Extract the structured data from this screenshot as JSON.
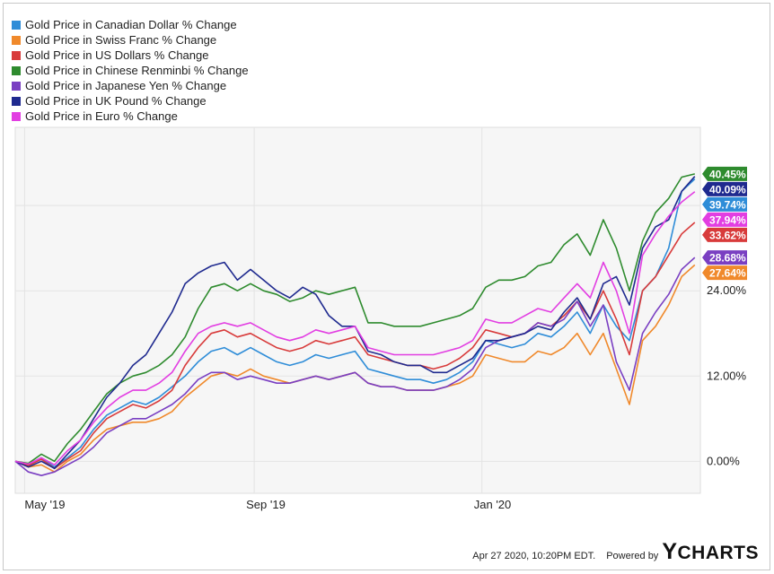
{
  "chart_data": {
    "type": "line",
    "x_ticks": [
      "May '19",
      "Sep '19",
      "Jan '20"
    ],
    "y_ticks": [
      "0.00%",
      "12.00%",
      "24.00%"
    ],
    "ylim": [
      -4.5,
      47
    ],
    "grid": true,
    "legend_position": "top-left",
    "x": [
      "2019-04-26",
      "2019-05-03",
      "2019-05-10",
      "2019-05-17",
      "2019-05-24",
      "2019-05-31",
      "2019-06-07",
      "2019-06-14",
      "2019-06-21",
      "2019-06-28",
      "2019-07-05",
      "2019-07-12",
      "2019-07-19",
      "2019-07-26",
      "2019-08-02",
      "2019-08-09",
      "2019-08-16",
      "2019-08-23",
      "2019-08-30",
      "2019-09-06",
      "2019-09-13",
      "2019-09-20",
      "2019-09-27",
      "2019-10-04",
      "2019-10-11",
      "2019-10-18",
      "2019-10-25",
      "2019-11-01",
      "2019-11-08",
      "2019-11-15",
      "2019-11-22",
      "2019-11-29",
      "2019-12-06",
      "2019-12-13",
      "2019-12-20",
      "2019-12-27",
      "2020-01-03",
      "2020-01-10",
      "2020-01-17",
      "2020-01-24",
      "2020-01-31",
      "2020-02-07",
      "2020-02-14",
      "2020-02-21",
      "2020-02-28",
      "2020-03-06",
      "2020-03-13",
      "2020-03-20",
      "2020-03-27",
      "2020-04-03",
      "2020-04-10",
      "2020-04-17",
      "2020-04-24"
    ],
    "series": [
      {
        "name": "Gold Price in Canadian Dollar % Change",
        "color": "#2f8dd8",
        "end_label": "39.74%",
        "values": [
          0,
          -0.5,
          0.5,
          -0.8,
          0.5,
          2,
          4.5,
          6.5,
          7.5,
          8.5,
          8,
          9,
          10.5,
          12,
          14,
          15.5,
          16,
          15,
          16,
          15,
          14,
          13.5,
          14,
          15,
          14.5,
          15,
          15.5,
          13,
          12.5,
          12,
          11.5,
          11.5,
          11,
          11.5,
          12.5,
          14,
          17,
          16.5,
          16,
          16.5,
          18,
          17.5,
          19,
          21,
          18,
          22,
          19,
          17,
          24,
          26,
          30,
          38,
          39.74
        ]
      },
      {
        "name": "Gold Price in Swiss Franc % Change",
        "color": "#f0892b",
        "end_label": "27.64%",
        "values": [
          0,
          -0.8,
          -0.5,
          -1.5,
          0,
          1,
          3,
          4.5,
          5,
          5.5,
          5.5,
          6,
          7,
          9,
          10.5,
          12,
          12.5,
          12,
          13,
          12,
          11.5,
          11,
          11.5,
          12,
          11.5,
          12,
          12.5,
          11,
          10.5,
          10.5,
          10,
          10,
          10,
          10.5,
          11,
          12,
          15,
          14.5,
          14,
          14,
          15.5,
          15,
          16,
          18,
          15,
          18,
          13,
          8,
          17,
          19,
          22,
          26,
          27.64
        ]
      },
      {
        "name": "Gold Price in US Dollars % Change",
        "color": "#d83b3b",
        "end_label": "33.62%",
        "values": [
          0,
          -0.6,
          0.3,
          -1,
          0.3,
          1.5,
          4,
          6,
          7,
          8,
          7.5,
          8.5,
          10,
          13.5,
          16,
          18,
          18.5,
          17.5,
          18,
          17,
          16,
          15.5,
          16,
          17,
          16.5,
          17,
          17.5,
          15,
          14.5,
          14,
          13.5,
          13.5,
          13,
          13.5,
          14.5,
          16,
          18.5,
          18,
          17.5,
          18,
          19.5,
          19,
          20.5,
          22.5,
          20,
          24,
          20,
          15,
          24,
          26,
          29,
          32,
          33.62
        ]
      },
      {
        "name": "Gold Price in Chinese Renminbi % Change",
        "color": "#2e8b2e",
        "end_label": "40.45%",
        "values": [
          0,
          -0.3,
          1,
          0,
          2.5,
          4.5,
          7,
          9.5,
          11,
          12,
          12.5,
          13.5,
          15,
          17.5,
          21.5,
          24.5,
          25,
          24,
          25,
          24,
          23.5,
          22.5,
          23,
          24,
          23.5,
          24,
          24.5,
          19.5,
          19.5,
          19,
          19,
          19,
          19.5,
          20,
          20.5,
          21.5,
          24.5,
          25.5,
          25.5,
          26,
          27.5,
          28,
          30.5,
          32,
          29,
          34,
          30,
          24,
          31,
          35,
          37,
          40,
          40.45
        ]
      },
      {
        "name": "Gold Price in Japanese Yen % Change",
        "color": "#7a3fc2",
        "end_label": "28.68%",
        "values": [
          0,
          -1.5,
          -2,
          -1.5,
          -0.5,
          0.5,
          2,
          4,
          5,
          6,
          6,
          7,
          8,
          9.5,
          11.5,
          12.5,
          12.5,
          11.5,
          12,
          11.5,
          11,
          11,
          11.5,
          12,
          11.5,
          12,
          12.5,
          11,
          10.5,
          10.5,
          10,
          10,
          10,
          10.5,
          11.5,
          13,
          16,
          17,
          17.5,
          18,
          19.5,
          19,
          20,
          22.5,
          19,
          22,
          14,
          10,
          18,
          21,
          23.5,
          27,
          28.68
        ]
      },
      {
        "name": "Gold Price in UK Pound % Change",
        "color": "#1f2a8f",
        "end_label": "40.09%",
        "values": [
          0,
          -0.8,
          0,
          -1,
          1,
          3,
          6,
          9,
          11,
          13.5,
          15,
          18,
          21,
          25,
          26.5,
          27.5,
          28,
          25.5,
          27,
          25.5,
          24,
          23,
          24.5,
          23.5,
          20.5,
          19,
          19,
          15.5,
          15,
          14,
          13.5,
          13.5,
          12.5,
          12.5,
          13.5,
          14.5,
          17,
          17,
          17.5,
          18,
          19,
          18.5,
          21,
          23,
          20,
          25,
          26,
          22,
          30,
          33,
          34,
          38,
          40.09
        ]
      },
      {
        "name": "Gold Price in Euro % Change",
        "color": "#e23ee2",
        "end_label": "37.94%",
        "values": [
          0,
          -0.4,
          0.5,
          -0.5,
          1.5,
          3,
          5.5,
          7.5,
          9,
          10,
          10,
          11,
          12.5,
          15.5,
          18,
          19,
          19.5,
          19,
          19.5,
          18.5,
          17.5,
          17,
          17.5,
          18.5,
          18,
          18.5,
          19,
          16,
          15.5,
          15,
          15,
          15,
          15,
          15.5,
          16,
          17,
          20,
          19.5,
          19.5,
          20.5,
          21.5,
          21,
          23,
          25,
          23,
          28,
          24,
          18,
          29,
          32,
          34.5,
          36.5,
          37.94
        ]
      }
    ]
  },
  "footer": {
    "timestamp": "Apr 27 2020, 10:20PM EDT.",
    "powered_by": "Powered by",
    "brand_rest": "CHARTS",
    "brand_initial": "Y"
  }
}
